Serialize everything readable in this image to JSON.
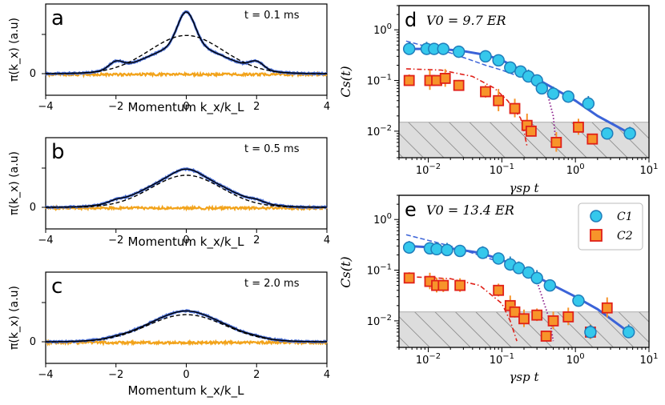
{
  "colors": {
    "data_blue": "#4a6fd6",
    "fit_black": "#000000",
    "gauss_dash": "#000000",
    "orange": "#f2a31b",
    "c1_fill": "#35c8ec",
    "c1_edge": "#1f7dbb",
    "c1_fit": "#3b63d8",
    "c2_fill": "#f7942a",
    "c2_edge": "#e02018",
    "c2_fit": "#e02018",
    "purple": "#8b1e8b",
    "noise_fill": "#dddddd",
    "noise_hatch": "#777777"
  },
  "chart_data": [
    {
      "id": "a",
      "type": "line",
      "panel_label": "a",
      "time_label": "t = 0.1 ms",
      "xlabel": "Momentum k_x/k_L",
      "ylabel": "π(k_x) (a.u)",
      "xlim": [
        -4,
        4
      ],
      "xticks": [
        "−4",
        "−2",
        "0",
        "2",
        "4"
      ],
      "yticks": [
        "0"
      ],
      "series": [
        {
          "name": "data",
          "peak": 1.0,
          "central_width": 0.25,
          "central_frac": 0.55,
          "side_peaks": 0.12
        },
        {
          "name": "fit",
          "peak": 1.0
        },
        {
          "name": "gaussian",
          "amplitude": 0.62,
          "width": 1.05
        },
        {
          "name": "difference",
          "level": 0.0
        }
      ]
    },
    {
      "id": "b",
      "type": "line",
      "panel_label": "b",
      "time_label": "t = 0.5 ms",
      "xlabel": "Momentum k_x/k_L",
      "ylabel": "π(k_x) (a.u)",
      "xlim": [
        -4,
        4
      ],
      "xticks": [
        "−4",
        "−2",
        "0",
        "2",
        "4"
      ],
      "yticks": [
        "0"
      ],
      "series": [
        {
          "name": "data",
          "peak": 0.62,
          "central_width": 0.35,
          "central_frac": 0.15,
          "side_peaks": 0.05
        },
        {
          "name": "fit",
          "peak": 0.62
        },
        {
          "name": "gaussian",
          "amplitude": 0.52,
          "width": 1.0
        },
        {
          "name": "difference",
          "level": 0.0
        }
      ]
    },
    {
      "id": "c",
      "type": "line",
      "panel_label": "c",
      "time_label": "t = 2.0 ms",
      "xlabel": "Momentum k_x/k_L",
      "ylabel": "π(k_x) (a.u)",
      "xlim": [
        -4,
        4
      ],
      "xticks": [
        "−4",
        "−2",
        "0",
        "2",
        "4"
      ],
      "yticks": [
        "0"
      ],
      "series": [
        {
          "name": "data",
          "peak": 0.5,
          "central_width": 0.4,
          "central_frac": 0.05,
          "side_peaks": 0.02
        },
        {
          "name": "fit",
          "peak": 0.5
        },
        {
          "name": "gaussian",
          "amplitude": 0.44,
          "width": 1.1
        },
        {
          "name": "difference",
          "level": 0.0
        }
      ]
    },
    {
      "id": "d",
      "type": "scatter",
      "panel_label": "d",
      "title": "V0 = 9.7 ER",
      "xlabel": "γsp t",
      "ylabel": "Cs(t)",
      "xscale": "log",
      "yscale": "log",
      "xlim": [
        0.004,
        10
      ],
      "ylim": [
        0.003,
        3
      ],
      "xticks": [
        "10^-2",
        "10^-1",
        "10^0",
        "10^1"
      ],
      "yticks": [
        "10^0",
        "10^-1",
        "10^-2"
      ],
      "noise_floor": 0.015,
      "series": [
        {
          "name": "C1",
          "points": [
            [
              0.0055,
              0.42
            ],
            [
              0.0095,
              0.42
            ],
            [
              0.012,
              0.42
            ],
            [
              0.016,
              0.42
            ],
            [
              0.026,
              0.37
            ],
            [
              0.06,
              0.3
            ],
            [
              0.09,
              0.25
            ],
            [
              0.13,
              0.18
            ],
            [
              0.18,
              0.15
            ],
            [
              0.23,
              0.12
            ],
            [
              0.3,
              0.1
            ],
            [
              0.35,
              0.07
            ],
            [
              0.5,
              0.055
            ],
            [
              0.8,
              0.048
            ],
            [
              1.5,
              0.035
            ],
            [
              2.7,
              0.009
            ],
            [
              5.5,
              0.009
            ]
          ]
        },
        {
          "name": "C2",
          "points": [
            [
              0.0055,
              0.1
            ],
            [
              0.0105,
              0.1
            ],
            [
              0.013,
              0.1
            ],
            [
              0.017,
              0.11
            ],
            [
              0.026,
              0.08
            ],
            [
              0.06,
              0.06
            ],
            [
              0.09,
              0.04
            ],
            [
              0.15,
              0.028
            ],
            [
              0.22,
              0.013
            ],
            [
              0.25,
              0.01
            ],
            [
              0.55,
              0.006
            ],
            [
              1.1,
              0.012
            ],
            [
              1.7,
              0.007
            ]
          ]
        }
      ],
      "fits": [
        {
          "name": "C1 fit",
          "points": [
            [
              0.005,
              0.42
            ],
            [
              0.015,
              0.42
            ],
            [
              0.03,
              0.38
            ],
            [
              0.06,
              0.32
            ],
            [
              0.1,
              0.25
            ],
            [
              0.2,
              0.15
            ],
            [
              0.4,
              0.085
            ],
            [
              1,
              0.04
            ],
            [
              2,
              0.02
            ],
            [
              5.5,
              0.009
            ]
          ]
        },
        {
          "name": "C1 short-time",
          "points": [
            [
              0.005,
              0.6
            ],
            [
              0.02,
              0.35
            ],
            [
              0.06,
              0.2
            ],
            [
              0.1,
              0.16
            ],
            [
              0.2,
              0.11
            ]
          ]
        },
        {
          "name": "C2 fit",
          "points": [
            [
              0.005,
              0.17
            ],
            [
              0.015,
              0.16
            ],
            [
              0.04,
              0.12
            ],
            [
              0.08,
              0.07
            ],
            [
              0.12,
              0.04
            ],
            [
              0.18,
              0.018
            ],
            [
              0.2,
              0.01
            ],
            [
              0.22,
              0.005
            ]
          ]
        },
        {
          "name": "C1 purple",
          "points": [
            [
              0.15,
              0.2
            ],
            [
              0.3,
              0.12
            ],
            [
              0.4,
              0.07
            ],
            [
              0.5,
              0.02
            ],
            [
              0.55,
              0.005
            ]
          ]
        }
      ]
    },
    {
      "id": "e",
      "type": "scatter",
      "panel_label": "e",
      "title": "V0 = 13.4 ER",
      "xlabel": "γsp t",
      "ylabel": "Cs(t)",
      "xscale": "log",
      "yscale": "log",
      "xlim": [
        0.004,
        10
      ],
      "ylim": [
        0.003,
        3
      ],
      "xticks": [
        "10^-2",
        "10^-1",
        "10^0",
        "10^1"
      ],
      "yticks": [
        "10^0",
        "10^-1",
        "10^-2"
      ],
      "noise_floor": 0.015,
      "legend": {
        "position": "top-right",
        "entries": [
          "C1",
          "C2"
        ]
      },
      "series": [
        {
          "name": "C1",
          "points": [
            [
              0.0055,
              0.28
            ],
            [
              0.0105,
              0.27
            ],
            [
              0.013,
              0.26
            ],
            [
              0.018,
              0.25
            ],
            [
              0.027,
              0.24
            ],
            [
              0.055,
              0.22
            ],
            [
              0.09,
              0.17
            ],
            [
              0.13,
              0.13
            ],
            [
              0.17,
              0.11
            ],
            [
              0.23,
              0.09
            ],
            [
              0.3,
              0.07
            ],
            [
              0.45,
              0.05
            ],
            [
              1.1,
              0.025
            ],
            [
              1.6,
              0.006
            ],
            [
              5.3,
              0.006
            ]
          ]
        },
        {
          "name": "C2",
          "points": [
            [
              0.0055,
              0.07
            ],
            [
              0.0105,
              0.06
            ],
            [
              0.013,
              0.05
            ],
            [
              0.016,
              0.05
            ],
            [
              0.027,
              0.05
            ],
            [
              0.09,
              0.04
            ],
            [
              0.13,
              0.02
            ],
            [
              0.15,
              0.015
            ],
            [
              0.2,
              0.011
            ],
            [
              0.3,
              0.013
            ],
            [
              0.4,
              0.005
            ],
            [
              0.5,
              0.01
            ],
            [
              0.8,
              0.012
            ],
            [
              1.6,
              0.006
            ],
            [
              2.7,
              0.018
            ]
          ]
        }
      ],
      "fits": [
        {
          "name": "C1 fit",
          "points": [
            [
              0.005,
              0.3
            ],
            [
              0.02,
              0.27
            ],
            [
              0.05,
              0.22
            ],
            [
              0.1,
              0.16
            ],
            [
              0.2,
              0.1
            ],
            [
              0.5,
              0.05
            ],
            [
              1,
              0.03
            ],
            [
              2,
              0.017
            ],
            [
              5.3,
              0.006
            ]
          ]
        },
        {
          "name": "C1 short-time",
          "points": [
            [
              0.005,
              0.5
            ],
            [
              0.02,
              0.3
            ],
            [
              0.06,
              0.18
            ],
            [
              0.1,
              0.14
            ]
          ]
        },
        {
          "name": "C2 fit",
          "points": [
            [
              0.005,
              0.075
            ],
            [
              0.02,
              0.068
            ],
            [
              0.05,
              0.05
            ],
            [
              0.1,
              0.022
            ],
            [
              0.13,
              0.01
            ],
            [
              0.16,
              0.004
            ]
          ]
        },
        {
          "name": "C1 purple",
          "points": [
            [
              0.1,
              0.15
            ],
            [
              0.2,
              0.1
            ],
            [
              0.3,
              0.06
            ],
            [
              0.45,
              0.01
            ],
            [
              0.5,
              0.004
            ]
          ]
        }
      ]
    }
  ]
}
